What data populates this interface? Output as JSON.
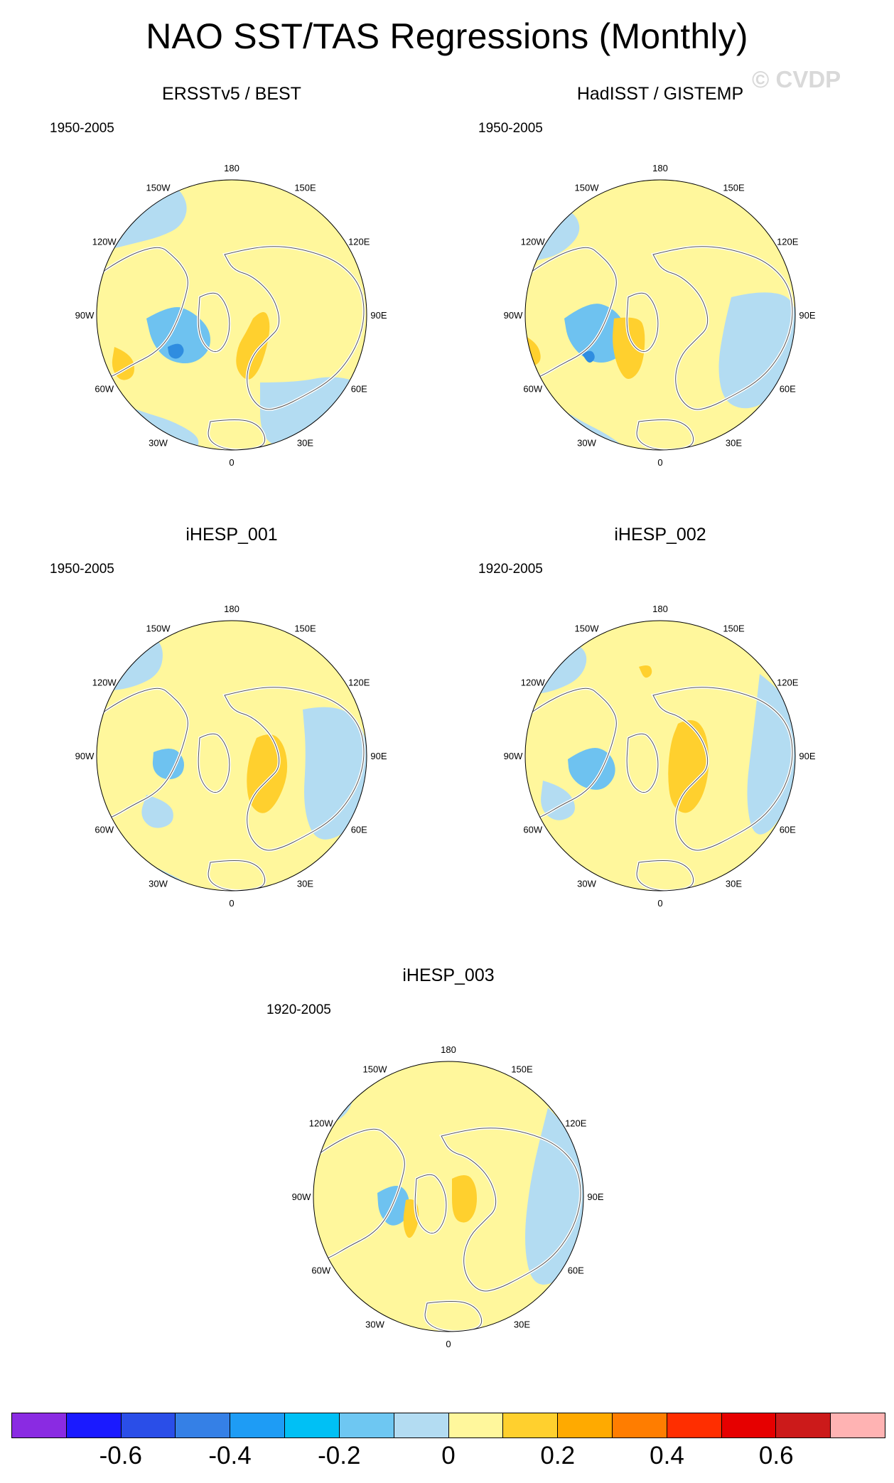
{
  "title": "NAO SST/TAS Regressions (Monthly)",
  "watermark": "© CVDP",
  "lon_labels": [
    "180",
    "150E",
    "120E",
    "90E",
    "60E",
    "30E",
    "0",
    "30W",
    "60W",
    "90W",
    "120W",
    "150W"
  ],
  "panels": [
    {
      "title": "ERSSTv5 / BEST",
      "period": "1950-2005"
    },
    {
      "title": "HadISST / GISTEMP",
      "period": "1950-2005"
    },
    {
      "title": "iHESP_001",
      "period": "1950-2005"
    },
    {
      "title": "iHESP_002",
      "period": "1920-2005"
    },
    {
      "title": "iHESP_003",
      "period": "1920-2005"
    }
  ],
  "colors": {
    "land_yellow": "#fff79c",
    "ocean_blue": "#b3dcf2",
    "mid_blue": "#6ec2f0",
    "deep_blue": "#2f8de0",
    "orange_yellow": "#ffd02e",
    "coast": "#ffffff"
  },
  "colorbar": {
    "colors": [
      "#8a2be2",
      "#1a1aff",
      "#2a4ee8",
      "#3580e6",
      "#1e9cf5",
      "#00c0f5",
      "#6ec7f2",
      "#b3dcf2",
      "#fff79c",
      "#ffd02e",
      "#ffaa00",
      "#ff7d00",
      "#ff2e00",
      "#e60000",
      "#cc1a1a",
      "#ffb3b3"
    ],
    "labels": [
      "-0.6",
      "-0.4",
      "-0.2",
      "0",
      "0.2",
      "0.4",
      "0.6"
    ]
  }
}
